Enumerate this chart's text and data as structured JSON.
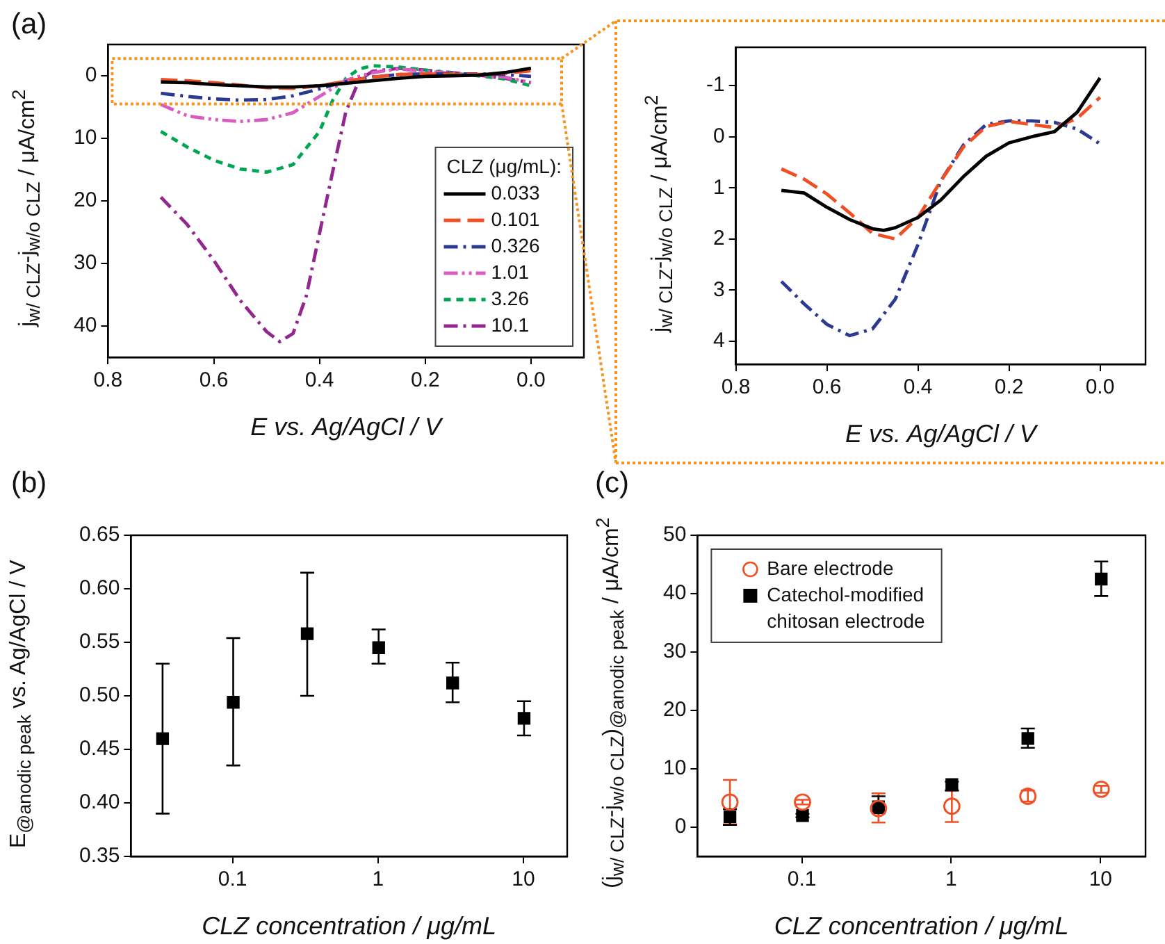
{
  "chart_data": [
    {
      "type": "line",
      "annotations": [
        "(a)"
      ],
      "xlabel": "E vs. Ag/AgCl / V",
      "ylabel": "j$_{w/ CLZ}$-j$_{w/o CLZ}$ / μA/cm$^{2}$",
      "xlim": [
        0.8,
        -0.1
      ],
      "xticks": [
        0.8,
        0.6,
        0.4,
        0.2,
        {
          "value": 0,
          "label": "0.0"
        }
      ],
      "ylim": [
        45,
        -5
      ],
      "yticks": [
        0,
        10,
        20,
        30,
        40
      ],
      "legend": "bottom right",
      "legend_title": "CLZ (μg/mL):",
      "series": [
        {
          "name": "0.033",
          "color": "#000000",
          "line_style": "solid",
          "x": [
            0.7,
            0.65,
            0.6,
            0.55,
            0.5,
            0.475,
            0.45,
            0.4,
            0.35,
            0.3,
            0.25,
            0.2,
            0.15,
            0.1,
            0.05,
            0
          ],
          "values": [
            1,
            1.1,
            1.4,
            1.6,
            1.8,
            1.8,
            1.8,
            1.6,
            1.2,
            0.8,
            0.4,
            0.1,
            0,
            -0.1,
            -0.5,
            -1.2
          ]
        },
        {
          "name": "0.101",
          "color": "#f04e23",
          "line_style": "dashed",
          "x": [
            0.7,
            0.65,
            0.6,
            0.55,
            0.5,
            0.45,
            0.4,
            0.35,
            0.3,
            0.25,
            0.2,
            0.15,
            0.1,
            0.05,
            0
          ],
          "values": [
            0.6,
            0.8,
            1.1,
            1.5,
            1.9,
            2,
            1.6,
            0.9,
            0.2,
            -0.2,
            -0.3,
            -0.2,
            -0.2,
            -0.4,
            -0.8
          ]
        },
        {
          "name": "0.326",
          "color": "#2b3990",
          "line_style": "dashdot",
          "x": [
            0.7,
            0.65,
            0.6,
            0.55,
            0.5,
            0.45,
            0.4,
            0.35,
            0.3,
            0.25,
            0.2,
            0.15,
            0.1,
            0.05,
            0
          ],
          "values": [
            2.8,
            3.3,
            3.7,
            3.9,
            3.8,
            3.2,
            2.1,
            0.9,
            0.2,
            -0.2,
            -0.3,
            -0.3,
            -0.3,
            -0.2,
            0.1
          ]
        },
        {
          "name": "1.01",
          "color": "#d95cc0",
          "line_style": "dashdotdot",
          "x": [
            0.7,
            0.65,
            0.6,
            0.55,
            0.5,
            0.45,
            0.4,
            0.35,
            0.3,
            0.25,
            0.2,
            0.15,
            0.1,
            0.05,
            0
          ],
          "values": [
            4.6,
            6.4,
            7,
            7.3,
            7,
            5.9,
            3.3,
            0.7,
            -0.5,
            -1.1,
            -0.7,
            -0.4,
            -0.1,
            0.2,
            1.1
          ]
        },
        {
          "name": "3.26",
          "color": "#00a651",
          "line_style": "dotted",
          "x": [
            0.7,
            0.65,
            0.6,
            0.55,
            0.5,
            0.45,
            0.4,
            0.375,
            0.35,
            0.325,
            0.3,
            0.25,
            0.2,
            0.15,
            0.1,
            0.05,
            0
          ],
          "values": [
            8.9,
            11.4,
            13.5,
            14.9,
            15.4,
            14.2,
            8.9,
            3.9,
            0.4,
            -1.1,
            -1.6,
            -1.4,
            -0.9,
            -0.4,
            0,
            0.5,
            1.6
          ]
        },
        {
          "name": "10.1",
          "color": "#92278f",
          "line_style": "dashdot",
          "x": [
            0.7,
            0.65,
            0.6,
            0.55,
            0.5,
            0.475,
            0.45,
            0.425,
            0.4,
            0.375,
            0.35,
            0.325,
            0.3,
            0.25,
            0.2,
            0.15,
            0.1,
            0.05,
            0
          ],
          "values": [
            19.4,
            23.8,
            29.5,
            35.9,
            40.9,
            42.5,
            41.2,
            35.2,
            25.2,
            15.3,
            5.7,
            0.7,
            -0.7,
            -1.2,
            -0.9,
            -0.5,
            -0.1,
            0.4,
            1.1
          ]
        }
      ]
    },
    {
      "type": "line",
      "xlabel": "E vs. Ag/AgCl / V",
      "ylabel": "j$_{w/ CLZ}$-j$_{w/o CLZ}$ / μA/cm$^{2}$",
      "xlim": [
        0.8,
        -0.1
      ],
      "xticks": [
        0.8,
        0.6,
        0.4,
        0.2,
        {
          "value": 0,
          "label": "0.0"
        }
      ],
      "ylim": [
        4.45,
        -1.75
      ],
      "yticks": [
        4,
        3,
        2,
        1,
        0,
        -1
      ],
      "series": [
        {
          "color": "#000000",
          "line_style": "solid",
          "x": [
            0.7,
            0.65,
            0.6,
            0.55,
            0.5,
            0.475,
            0.45,
            0.4,
            0.35,
            0.3,
            0.25,
            0.2,
            0.15,
            0.1,
            0.05,
            0
          ],
          "values": [
            1.05,
            1.1,
            1.38,
            1.62,
            1.8,
            1.83,
            1.78,
            1.58,
            1.24,
            0.78,
            0.38,
            0.12,
            0,
            -0.1,
            -0.48,
            -1.15
          ]
        },
        {
          "color": "#f04e23",
          "line_style": "dashed",
          "x": [
            0.7,
            0.65,
            0.6,
            0.55,
            0.5,
            0.45,
            0.4,
            0.35,
            0.3,
            0.25,
            0.2,
            0.15,
            0.1,
            0.05,
            0
          ],
          "values": [
            0.63,
            0.83,
            1.12,
            1.49,
            1.89,
            2,
            1.58,
            0.87,
            0.2,
            -0.2,
            -0.3,
            -0.24,
            -0.18,
            -0.36,
            -0.77
          ]
        },
        {
          "color": "#2b3990",
          "line_style": "dashdot",
          "x": [
            0.7,
            0.65,
            0.6,
            0.55,
            0.5,
            0.45,
            0.4,
            0.35,
            0.3,
            0.25,
            0.2,
            0.15,
            0.1,
            0.05,
            0
          ],
          "values": [
            2.83,
            3.27,
            3.67,
            3.89,
            3.76,
            3.18,
            2.11,
            0.87,
            0.16,
            -0.24,
            -0.31,
            -0.31,
            -0.28,
            -0.15,
            0.14
          ]
        }
      ]
    },
    {
      "type": "scatter",
      "annotations": [
        "(b)"
      ],
      "xlabel": "CLZ concentration / μg/mL",
      "ylabel": "E$_{@anodic peak}$ vs. Ag/AgCl / V",
      "log": "x",
      "xlim": [
        0.02,
        20
      ],
      "xticks": [
        0.1,
        1,
        10
      ],
      "ylim": [
        0.35,
        0.65
      ],
      "yticks": [
        0.35,
        {
          "value": 0.4,
          "label": "0.40"
        },
        0.45,
        {
          "value": 0.5,
          "label": "0.50"
        },
        0.55,
        {
          "value": 0.6,
          "label": "0.60"
        },
        0.65
      ],
      "marker": "square",
      "x": [
        0.033,
        0.101,
        0.326,
        1.01,
        3.26,
        10.1
      ],
      "series": [
        {
          "color": "#000000",
          "values": [
            0.46,
            0.494,
            0.558,
            0.545,
            0.512,
            0.479
          ],
          "errors": [
            [
              0.39,
              0.53
            ],
            [
              0.435,
              0.554
            ],
            [
              0.5,
              0.615
            ],
            [
              0.53,
              0.562
            ],
            [
              0.494,
              0.531
            ],
            [
              0.463,
              0.495
            ]
          ]
        }
      ]
    },
    {
      "type": "scatter",
      "annotations": [
        "(c)"
      ],
      "xlabel": "CLZ concentration / μg/mL",
      "ylabel": "(j$_{w/ CLZ}$-j$_{w/o CLZ}$)$_{@anodic peak}$ / μA/cm$^{2}$",
      "log": "x",
      "xlim": [
        0.02,
        20
      ],
      "xticks": [
        0.1,
        1,
        10
      ],
      "ylim": [
        -5,
        50
      ],
      "yticks": [
        0,
        10,
        20,
        30,
        40,
        50
      ],
      "legend": "top left",
      "x": [
        0.033,
        0.101,
        0.326,
        1.01,
        3.26,
        10.1
      ],
      "series": [
        {
          "name": "Bare electrode",
          "color": "#f04e23",
          "marker": "circle",
          "values": [
            4.3,
            4.3,
            3.2,
            3.6,
            5.3,
            6.5
          ],
          "errors": [
            [
              0.5,
              8.1
            ],
            [
              3.9,
              4.7
            ],
            [
              0.8,
              5.8
            ],
            [
              0.9,
              6.3
            ],
            [
              4.4,
              6.3
            ],
            [
              5.9,
              7.1
            ]
          ]
        },
        {
          "name": "Catechol-modified chitosan electrode",
          "color": "#000000",
          "marker": "square",
          "values": [
            1.8,
            2,
            3.5,
            7.3,
            15.2,
            42.5
          ],
          "errors": [
            [
              0.4,
              3.1
            ],
            [
              1.7,
              2.3
            ],
            [
              2.4,
              5.3
            ],
            [
              6.3,
              7.8
            ],
            [
              13.6,
              16.9
            ],
            [
              39.6,
              45.5
            ]
          ]
        }
      ]
    }
  ]
}
